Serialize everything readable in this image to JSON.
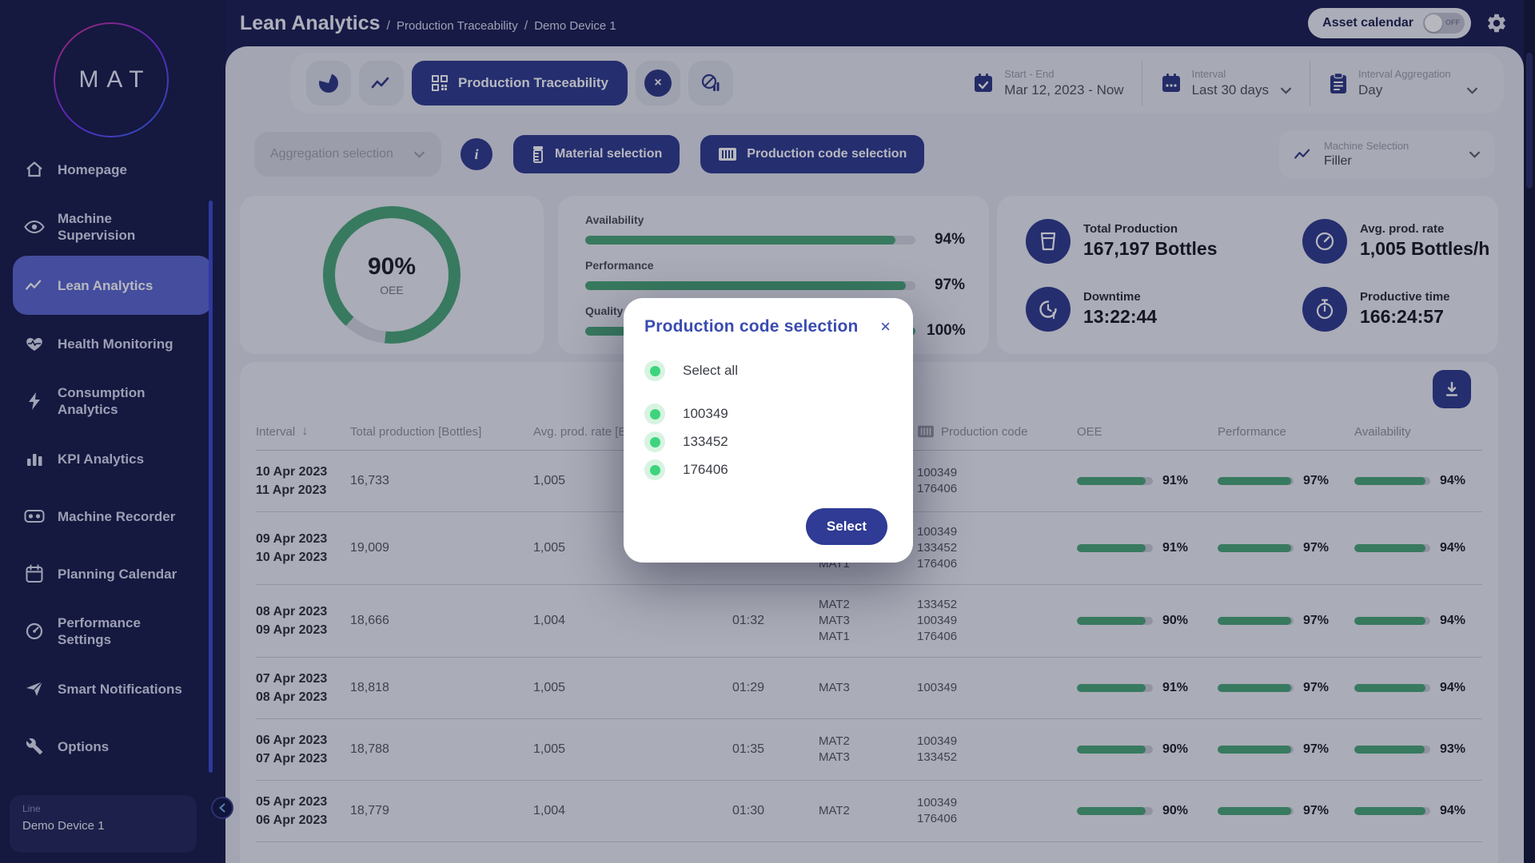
{
  "colors": {
    "navy": "#1a1d52",
    "primary": "#2e3a8f",
    "active_item": "#5b66d2",
    "green_bar": "#4aa677",
    "check_green": "#3ed47d",
    "modal_title": "#3a4cb0"
  },
  "sidebar": {
    "logo": "MAT",
    "items": [
      {
        "label": "Homepage",
        "icon": "home-icon",
        "active": false
      },
      {
        "label": "Machine Supervision",
        "icon": "eye-icon",
        "active": false
      },
      {
        "label": "Lean Analytics",
        "icon": "trend-line-icon",
        "active": true
      },
      {
        "label": "Health Monitoring",
        "icon": "heart-pulse-icon",
        "active": false
      },
      {
        "label": "Consumption Analytics",
        "icon": "bolt-icon",
        "active": false
      },
      {
        "label": "KPI Analytics",
        "icon": "bar-chart-icon",
        "active": false
      },
      {
        "label": "Machine Recorder",
        "icon": "recorder-icon",
        "active": false
      },
      {
        "label": "Planning Calendar",
        "icon": "calendar-icon",
        "active": false
      },
      {
        "label": "Performance Settings",
        "icon": "gauge-icon",
        "active": false
      },
      {
        "label": "Smart Notifications",
        "icon": "send-icon",
        "active": false
      },
      {
        "label": "Options",
        "icon": "wrench-icon",
        "active": false
      }
    ],
    "device": {
      "label": "Line",
      "name": "Demo Device 1"
    }
  },
  "header": {
    "title": "Lean Analytics",
    "breadcrumbs": [
      "Production Traceability",
      "Demo Device 1"
    ],
    "asset_calendar": {
      "label": "Asset calendar",
      "state": "OFF"
    }
  },
  "toolbar": {
    "active_tab": "Production Traceability",
    "date_range": {
      "label": "Start - End",
      "value": "Mar 12, 2023 - Now"
    },
    "interval": {
      "label": "Interval",
      "value": "Last 30 days"
    },
    "aggregation": {
      "label": "Interval Aggregation",
      "value": "Day"
    }
  },
  "filters": {
    "aggregation_selection": "Aggregation selection",
    "material_selection": "Material selection",
    "production_code_selection": "Production code selection",
    "machine_selection": {
      "label": "Machine Selection",
      "value": "Filler"
    }
  },
  "kpis": {
    "oee": {
      "display": "90%",
      "label": "OEE",
      "percent": 90
    },
    "bars": [
      {
        "label": "Availability",
        "percent": 94,
        "display": "94%"
      },
      {
        "label": "Performance",
        "percent": 97,
        "display": "97%"
      },
      {
        "label": "Quality",
        "percent": 100,
        "display": "100%"
      }
    ],
    "metrics": [
      {
        "label": "Total Production",
        "value": "167,197 Bottles",
        "icon": "bucket-icon"
      },
      {
        "label": "Avg. prod. rate",
        "value": "1,005 Bottles/h",
        "icon": "speedometer-icon"
      },
      {
        "label": "Downtime",
        "value": "13:22:44",
        "icon": "clock-alert-icon"
      },
      {
        "label": "Productive time",
        "value": "166:24:57",
        "icon": "stopwatch-icon"
      }
    ]
  },
  "table": {
    "columns": [
      {
        "label": "Interval",
        "sort": "down"
      },
      {
        "label": "Total production [Bottles]"
      },
      {
        "label": "Avg. prod. rate [Bottles/h]"
      },
      {
        "label": ""
      },
      {
        "label": ""
      },
      {
        "label": "Production code",
        "icon": "barcode-icon"
      },
      {
        "label": "OEE"
      },
      {
        "label": "Performance"
      },
      {
        "label": "Availability"
      }
    ],
    "rows": [
      {
        "dates": [
          "10 Apr 2023",
          "11 Apr 2023"
        ],
        "total": "16,733",
        "rate": "1,005",
        "downtime": "",
        "materials": [],
        "codes": [
          "100349",
          "176406"
        ],
        "oee": 91,
        "performance": 97,
        "availability": 94
      },
      {
        "dates": [
          "09 Apr 2023",
          "10 Apr 2023"
        ],
        "total": "19,009",
        "rate": "1,005",
        "downtime": "",
        "materials": [
          "",
          "",
          "MAT1"
        ],
        "codes": [
          "100349",
          "133452",
          "176406"
        ],
        "oee": 91,
        "performance": 97,
        "availability": 94
      },
      {
        "dates": [
          "08 Apr 2023",
          "09 Apr 2023"
        ],
        "total": "18,666",
        "rate": "1,004",
        "downtime": "01:32",
        "materials": [
          "MAT2",
          "MAT3",
          "MAT1"
        ],
        "codes": [
          "133452",
          "100349",
          "176406"
        ],
        "oee": 90,
        "performance": 97,
        "availability": 94
      },
      {
        "dates": [
          "07 Apr 2023",
          "08 Apr 2023"
        ],
        "total": "18,818",
        "rate": "1,005",
        "downtime": "01:29",
        "materials": [
          "MAT3"
        ],
        "codes": [
          "100349"
        ],
        "oee": 91,
        "performance": 97,
        "availability": 94
      },
      {
        "dates": [
          "06 Apr 2023",
          "07 Apr 2023"
        ],
        "total": "18,788",
        "rate": "1,005",
        "downtime": "01:35",
        "materials": [
          "MAT2",
          "MAT3"
        ],
        "codes": [
          "100349",
          "133452"
        ],
        "oee": 90,
        "performance": 97,
        "availability": 93
      },
      {
        "dates": [
          "05 Apr 2023",
          "06 Apr 2023"
        ],
        "total": "18,779",
        "rate": "1,004",
        "downtime": "01:30",
        "materials": [
          "MAT2"
        ],
        "codes": [
          "100349",
          "176406"
        ],
        "oee": 90,
        "performance": 97,
        "availability": 94
      }
    ]
  },
  "modal": {
    "title": "Production code selection",
    "select_all": "Select all",
    "options": [
      "100349",
      "133452",
      "176406"
    ],
    "button": "Select"
  }
}
